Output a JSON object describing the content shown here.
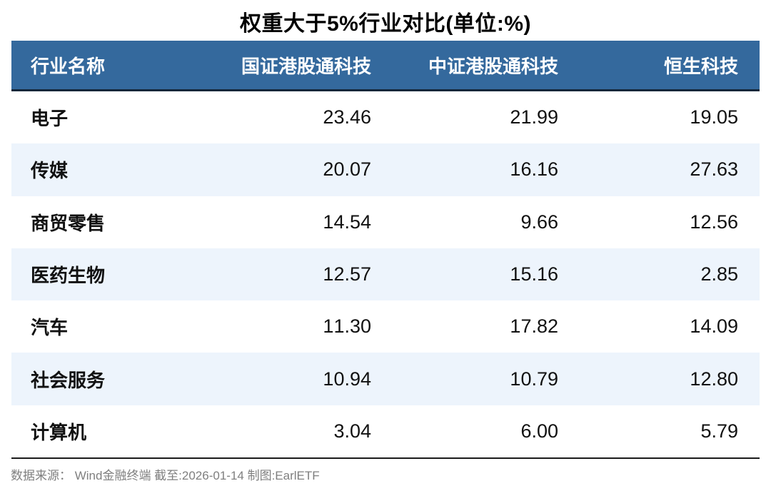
{
  "title": "权重大于5%行业对比(单位:%)",
  "source_note": "数据来源： Wind金融终端 截至:2026-01-14 制图:EarlETF",
  "colors": {
    "header_bg": "#34699d",
    "header_text": "#ffffff",
    "header_rule": "#12263a",
    "row_alt_bg": "#edf4fc",
    "bottom_rule": "#1a1a1a",
    "body_text": "#111111",
    "footer_text": "#7f7f7f"
  },
  "chart_data": {
    "type": "table",
    "title": "权重大于5%行业对比(单位:%)",
    "columns": [
      "行业名称",
      "国证港股通科技",
      "中证港股通科技",
      "恒生科技"
    ],
    "rows": [
      [
        "电子",
        "23.46",
        "21.99",
        "19.05"
      ],
      [
        "传媒",
        "20.07",
        "16.16",
        "27.63"
      ],
      [
        "商贸零售",
        "14.54",
        "9.66",
        "12.56"
      ],
      [
        "医药生物",
        "12.57",
        "15.16",
        "2.85"
      ],
      [
        "汽车",
        "11.30",
        "17.82",
        "14.09"
      ],
      [
        "社会服务",
        "10.94",
        "10.79",
        "12.80"
      ],
      [
        "计算机",
        "3.04",
        "6.00",
        "5.79"
      ]
    ],
    "layout": {
      "zebra_striping": true,
      "first_zebra_row_index": 1,
      "numeric_alignment": "right",
      "header_position": "top"
    }
  }
}
